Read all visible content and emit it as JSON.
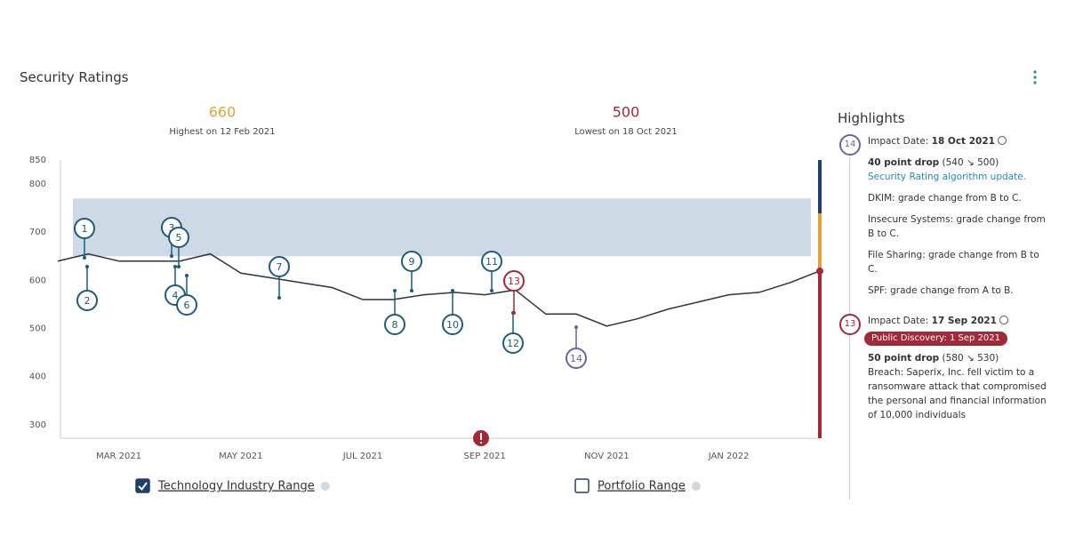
{
  "header": {
    "title": "Security Ratings"
  },
  "chart_data": {
    "type": "line",
    "annotations": [
      {
        "value": 660,
        "text": "Highest on 12 Feb 2021",
        "color": "#e3a33b"
      },
      {
        "value": 500,
        "text": "Lowest on 18 Oct 2021",
        "color": "#a3283a"
      }
    ],
    "categories": [
      null,
      null,
      "MAR 2021",
      null,
      null,
      null,
      "MAY 2021",
      null,
      null,
      null,
      "JUL 2021",
      null,
      null,
      null,
      "SEP 2021",
      null,
      null,
      null,
      "NOV 2021",
      null,
      null,
      null,
      "JAN 2022",
      null,
      null,
      null
    ],
    "values": [
      640,
      655,
      640,
      640,
      640,
      655,
      615,
      605,
      595,
      585,
      560,
      560,
      570,
      575,
      570,
      580,
      530,
      530,
      505,
      520,
      540,
      555,
      570,
      575,
      595,
      620
    ],
    "color": "#2b3440",
    "ylim": [
      272,
      850
    ],
    "yticks": [
      300,
      400,
      500,
      600,
      700,
      800,
      850
    ],
    "ranges": [
      {
        "name": "Technology Industry Range",
        "checked": true,
        "values": [
          650,
          770
        ],
        "color": "#cdd9e4"
      },
      {
        "name": "Portfolio Range",
        "checked": false,
        "color": "#d3d6da"
      }
    ],
    "events": [
      {
        "label": "1",
        "color": "#1f5a7a"
      },
      {
        "label": "2",
        "color": "#1f5a7a"
      },
      {
        "label": "3",
        "color": "#1f5a7a"
      },
      {
        "label": "4",
        "color": "#1f5a7a"
      },
      {
        "label": "5",
        "color": "#1f5a7a"
      },
      {
        "label": "6",
        "color": "#1f5a7a"
      },
      {
        "label": "7",
        "color": "#1f5a7a"
      },
      {
        "label": "8",
        "color": "#1f5a7a"
      },
      {
        "label": "9",
        "color": "#1f5a7a"
      },
      {
        "label": "10",
        "color": "#1f5a7a"
      },
      {
        "label": "11",
        "color": "#1f5a7a"
      },
      {
        "label": "12",
        "color": "#1f5a7a"
      },
      {
        "label": "13",
        "color": "#a3283a"
      },
      {
        "label": "14",
        "color": "#6e5fa8"
      }
    ]
  },
  "highlights": {
    "title": "Highlights",
    "items": [
      {
        "badge": "14",
        "date_label": "Impact Date:",
        "date": "18 Oct 2021",
        "drop": "40 point drop",
        "change": "(540 ↘ 500)",
        "link": "Security Rating algorithm update.",
        "details": [
          "DKIM: grade change from B to C.",
          "Insecure Systems: grade change from B to C.",
          "File Sharing: grade change from B to C.",
          "SPF: grade change from A to B."
        ]
      },
      {
        "badge": "13",
        "date_label": "Impact Date:",
        "date": "17 Sep 2021",
        "tag": "Public Discovery: 1 Sep 2021",
        "drop": "50 point drop",
        "change": "(580 ↘ 530)",
        "details": [
          "Breach: Saperix, Inc. fell victim to a ransomware attack that compromised the personal and financial information of 10,000 individuals"
        ]
      }
    ]
  }
}
